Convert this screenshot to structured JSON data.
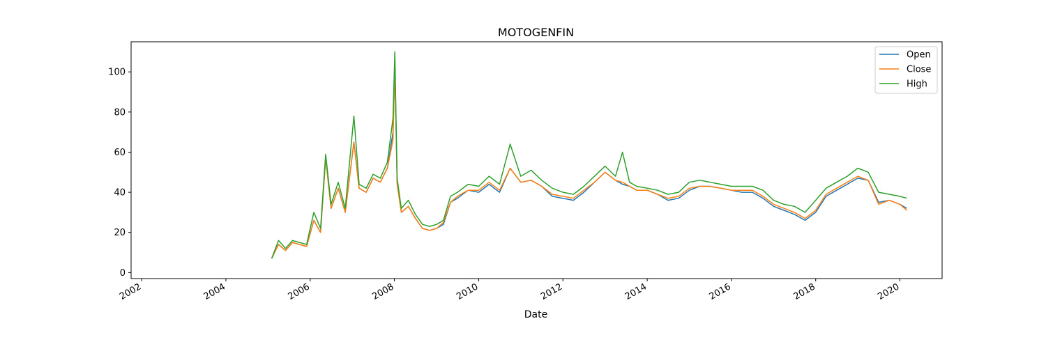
{
  "chart_data": {
    "type": "line",
    "title": "MOTOGENFIN",
    "xlabel": "Date",
    "ylabel": "",
    "xlim": [
      "2001-10-01",
      "2021-01-01"
    ],
    "ylim": [
      -3,
      115
    ],
    "x_ticks": [
      "2002",
      "2004",
      "2006",
      "2008",
      "2010",
      "2012",
      "2014",
      "2016",
      "2018",
      "2020"
    ],
    "y_ticks": [
      0,
      20,
      40,
      60,
      80,
      100
    ],
    "grid": false,
    "legend": "top-right",
    "x": [
      "2005-02-01",
      "2005-04-01",
      "2005-06-01",
      "2005-08-01",
      "2005-10-01",
      "2005-12-01",
      "2006-02-01",
      "2006-04-01",
      "2006-05-15",
      "2006-07-01",
      "2006-09-01",
      "2006-11-01",
      "2007-01-15",
      "2007-03-01",
      "2007-05-01",
      "2007-07-01",
      "2007-09-01",
      "2007-11-01",
      "2007-12-20",
      "2008-01-05",
      "2008-01-25",
      "2008-03-01",
      "2008-05-01",
      "2008-07-01",
      "2008-09-01",
      "2008-11-01",
      "2009-01-01",
      "2009-03-01",
      "2009-05-01",
      "2009-07-01",
      "2009-10-01",
      "2010-01-01",
      "2010-04-01",
      "2010-07-01",
      "2010-10-01",
      "2011-01-01",
      "2011-04-01",
      "2011-07-01",
      "2011-10-01",
      "2012-01-01",
      "2012-04-01",
      "2012-07-01",
      "2012-10-01",
      "2013-01-01",
      "2013-04-01",
      "2013-06-01",
      "2013-08-01",
      "2013-10-01",
      "2014-01-01",
      "2014-04-01",
      "2014-07-01",
      "2014-10-01",
      "2015-01-01",
      "2015-04-01",
      "2015-07-01",
      "2015-10-01",
      "2016-01-01",
      "2016-04-01",
      "2016-07-01",
      "2016-10-01",
      "2017-01-01",
      "2017-04-01",
      "2017-07-01",
      "2017-10-01",
      "2018-01-01",
      "2018-04-01",
      "2018-07-01",
      "2018-10-01",
      "2019-01-01",
      "2019-04-01",
      "2019-07-01",
      "2019-10-01",
      "2020-01-01",
      "2020-03-01"
    ],
    "series": [
      {
        "name": "Open",
        "color": "#1f77b4",
        "values": [
          7,
          14,
          11,
          15,
          14,
          13,
          26,
          20,
          57,
          32,
          42,
          30,
          65,
          42,
          40,
          47,
          45,
          52,
          70,
          104,
          45,
          30,
          33,
          27,
          22,
          21,
          22,
          24,
          35,
          37,
          41,
          40,
          44,
          40,
          52,
          45,
          46,
          43,
          38,
          37,
          36,
          40,
          45,
          50,
          46,
          44,
          43,
          41,
          41,
          39,
          36,
          37,
          41,
          43,
          43,
          42,
          41,
          40,
          40,
          37,
          33,
          31,
          29,
          26,
          30,
          38,
          41,
          44,
          47,
          46,
          35,
          36,
          34,
          32
        ]
      },
      {
        "name": "Close",
        "color": "#ff7f0e",
        "values": [
          7,
          14,
          11,
          15,
          14,
          13,
          26,
          20,
          57,
          32,
          42,
          30,
          65,
          42,
          40,
          47,
          45,
          52,
          66,
          103,
          44,
          30,
          33,
          27,
          22,
          21,
          22,
          25,
          35,
          38,
          41,
          41,
          45,
          41,
          52,
          45,
          46,
          43,
          39,
          38,
          37,
          41,
          45,
          50,
          46,
          45,
          43,
          41,
          41,
          39,
          37,
          38,
          42,
          43,
          43,
          42,
          41,
          41,
          41,
          38,
          34,
          32,
          30,
          27,
          31,
          39,
          42,
          45,
          48,
          46,
          34,
          36,
          34,
          31
        ]
      },
      {
        "name": "High",
        "color": "#2ca02c",
        "values": [
          7,
          16,
          12,
          16,
          15,
          14,
          30,
          22,
          59,
          34,
          45,
          32,
          78,
          44,
          42,
          49,
          47,
          55,
          77,
          110,
          47,
          32,
          36,
          29,
          24,
          23,
          24,
          26,
          38,
          40,
          44,
          43,
          48,
          44,
          64,
          48,
          51,
          46,
          42,
          40,
          39,
          43,
          48,
          53,
          48,
          60,
          45,
          43,
          42,
          41,
          39,
          40,
          45,
          46,
          45,
          44,
          43,
          43,
          43,
          41,
          36,
          34,
          33,
          30,
          36,
          42,
          45,
          48,
          52,
          50,
          40,
          39,
          38,
          37
        ]
      }
    ]
  }
}
